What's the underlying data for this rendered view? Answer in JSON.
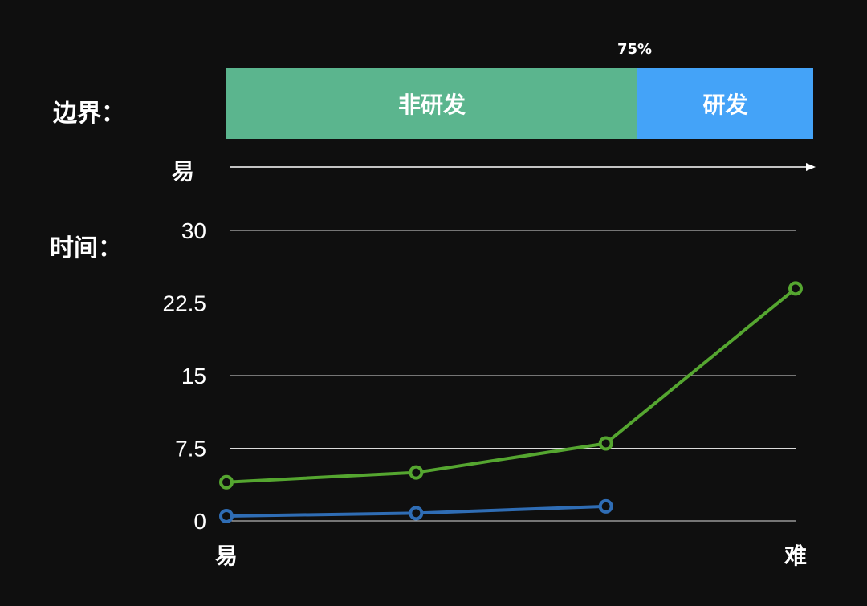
{
  "boundary": {
    "label": "边界：",
    "segments": [
      {
        "name": "非研发",
        "share": 0.75,
        "color": "#5bb58e"
      },
      {
        "name": "研发",
        "share": 0.25,
        "color": "#44a3f8"
      }
    ],
    "split_label": "75%",
    "arrow_start_label": "易"
  },
  "time_label": "时间：",
  "chart_data": {
    "type": "line",
    "title": "",
    "xlabel": "",
    "ylabel": "",
    "ylim": [
      0,
      30
    ],
    "yticks": [
      "0",
      "7.5",
      "15",
      "22.5",
      "30"
    ],
    "x_axis_labels": {
      "start": "易",
      "end": "难"
    },
    "grid": true,
    "x": [
      0,
      1,
      2,
      3
    ],
    "series": [
      {
        "color": "#55a630",
        "values": [
          4,
          5,
          8,
          24
        ]
      },
      {
        "color": "#2f6db5",
        "values": [
          0.5,
          0.8,
          1.5,
          null
        ]
      }
    ]
  }
}
